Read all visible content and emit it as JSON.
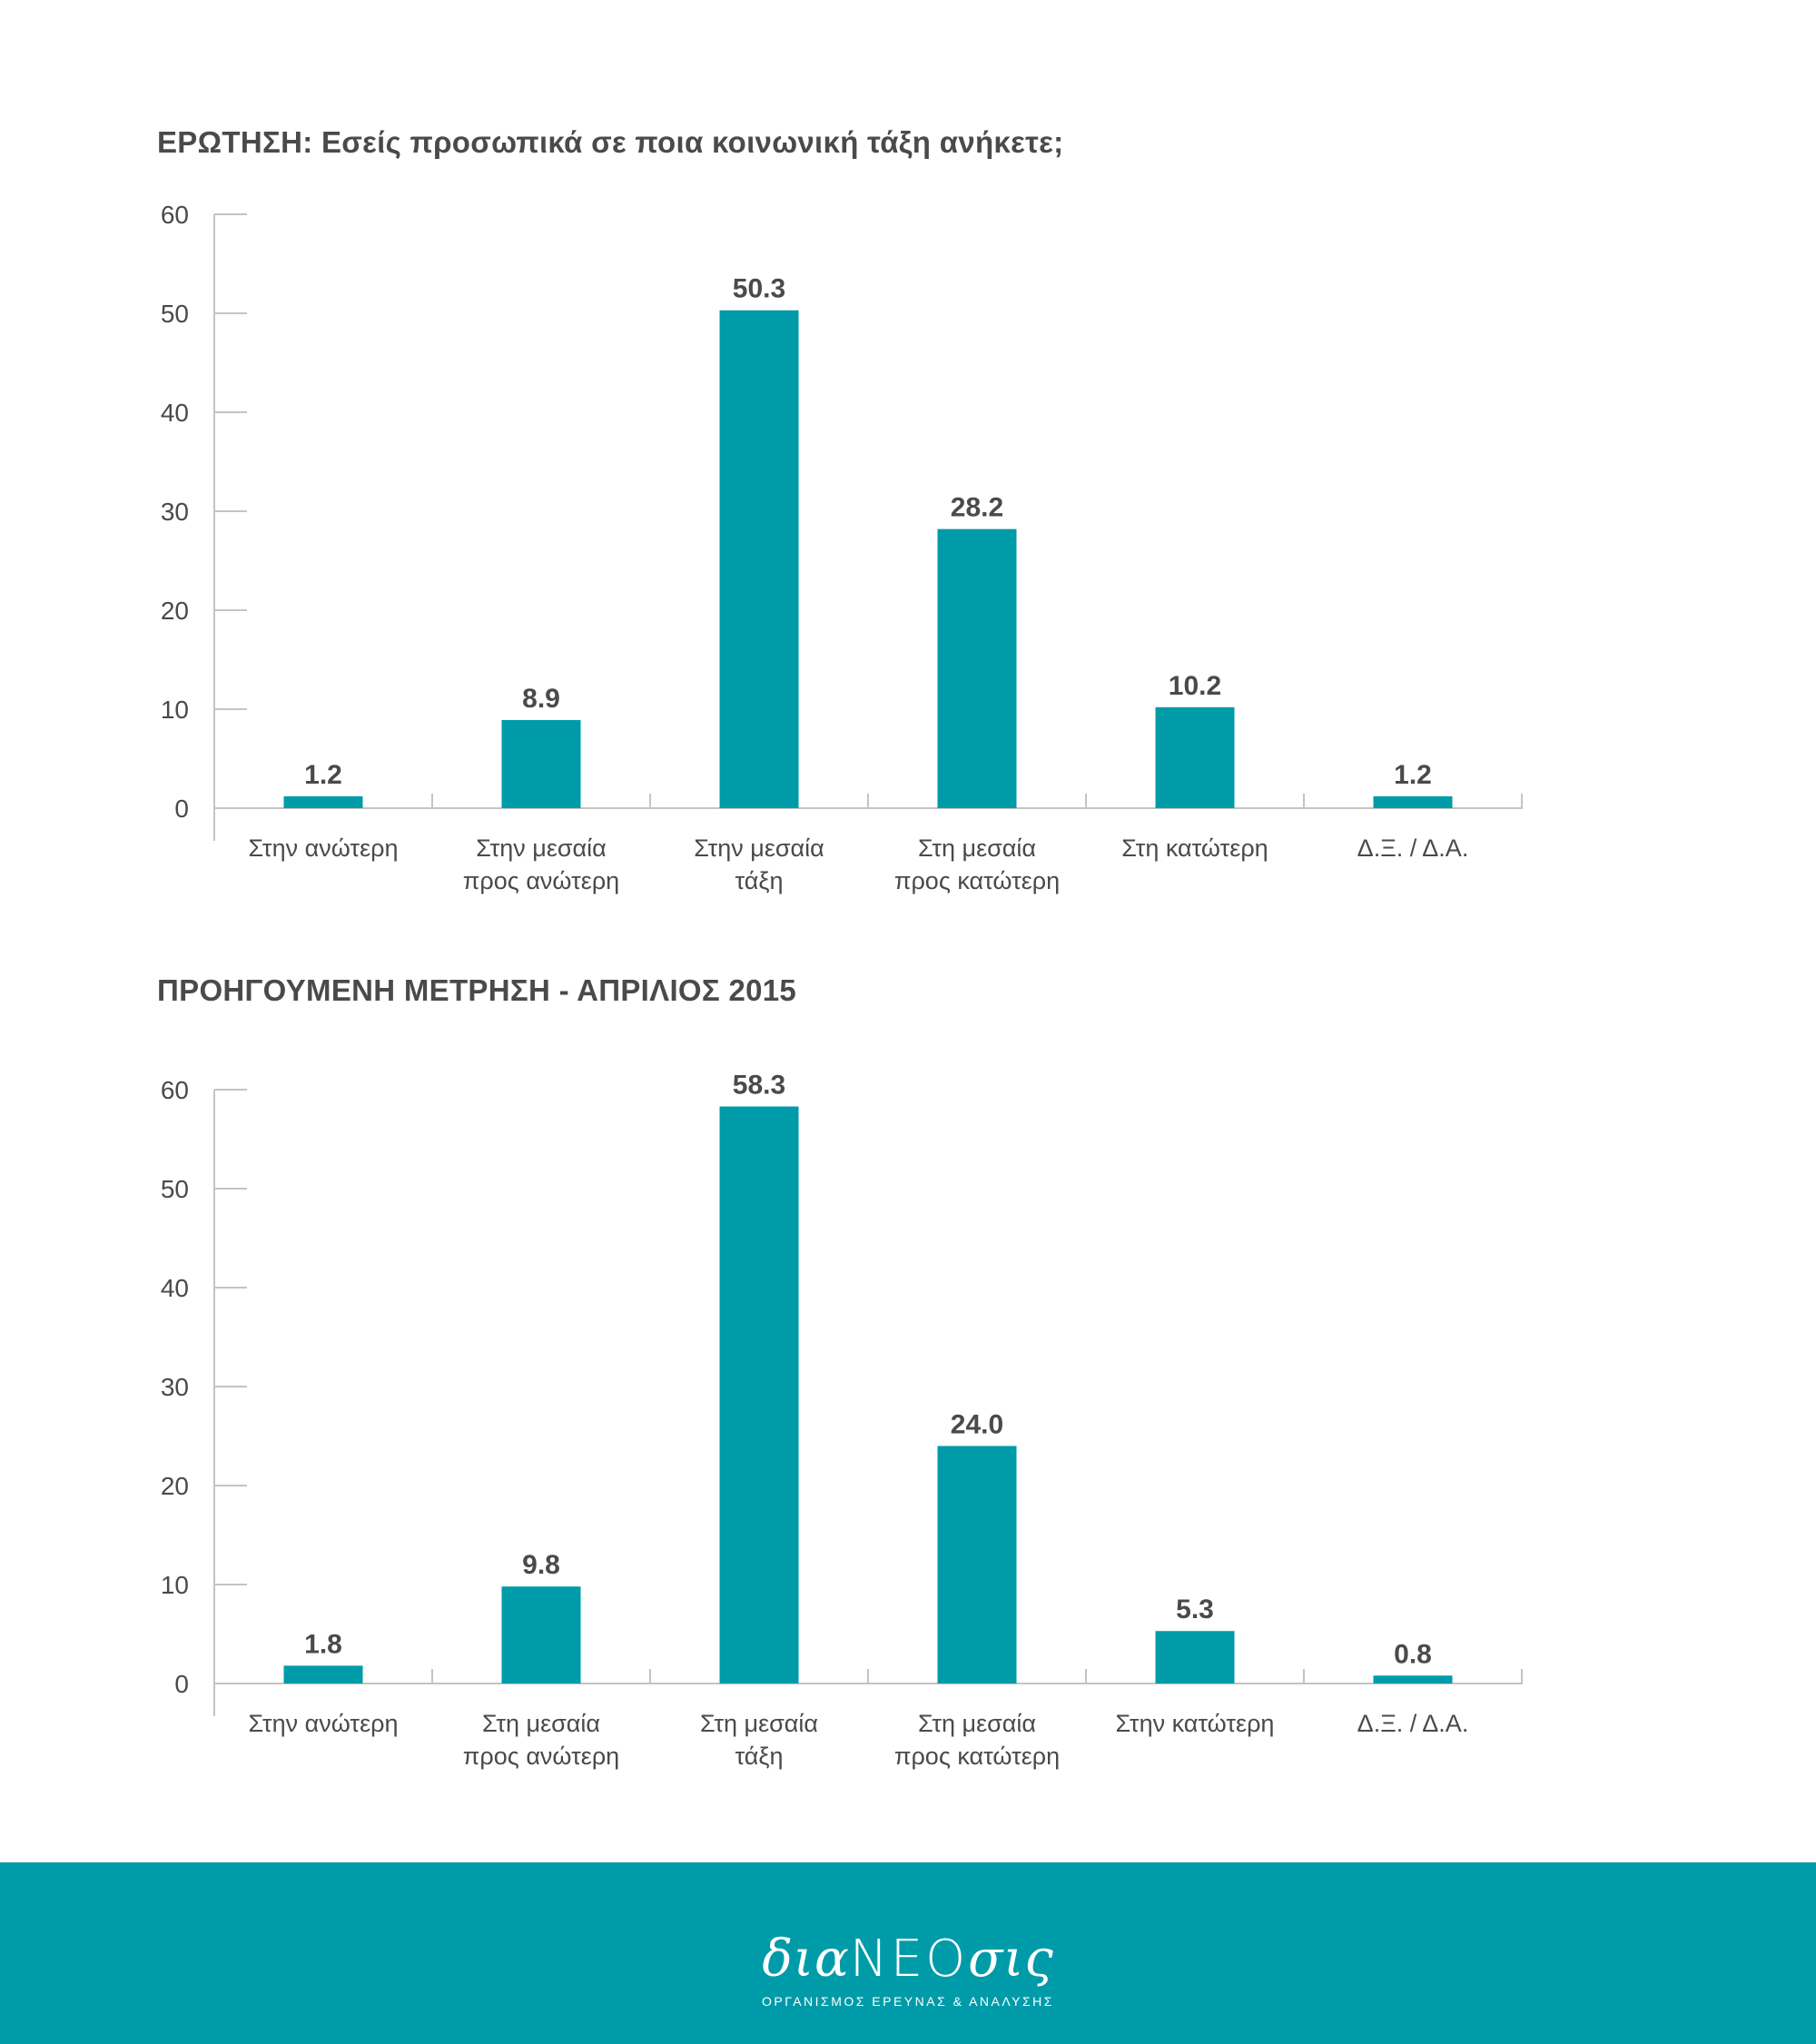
{
  "colors": {
    "bar": "#009ba9",
    "axis": "#c4c4c4",
    "text": "#4a4a4a",
    "footer_bg": "#009ba9"
  },
  "chart_data": [
    {
      "type": "bar",
      "title": "ΕΡΩΤΗΣΗ: Εσείς προσωπικά σε ποια κοινωνική τάξη ανήκετε;",
      "categories": [
        [
          "Στην ανώτερη"
        ],
        [
          "Στην μεσαία",
          "προς ανώτερη"
        ],
        [
          "Στην μεσαία",
          "τάξη"
        ],
        [
          "Στη μεσαία",
          "προς κατώτερη"
        ],
        [
          "Στη κατώτερη"
        ],
        [
          "Δ.Ξ. / Δ.Α."
        ]
      ],
      "values": [
        1.2,
        8.9,
        50.3,
        28.2,
        10.2,
        1.2
      ],
      "value_labels": [
        "1.2",
        "8.9",
        "50.3",
        "28.2",
        "10.2",
        "1.2"
      ],
      "yticks": [
        "0",
        "10",
        "20",
        "30",
        "40",
        "50",
        "60"
      ],
      "ylim": [
        0,
        60
      ],
      "grid": false,
      "legend": "none"
    },
    {
      "type": "bar",
      "title": "ΠΡΟΗΓΟΥΜΕΝΗ ΜΕΤΡΗΣΗ - ΑΠΡΙΛΙΟΣ 2015",
      "categories": [
        [
          "Στην ανώτερη"
        ],
        [
          "Στη μεσαία",
          "προς ανώτερη"
        ],
        [
          "Στη μεσαία",
          "τάξη"
        ],
        [
          "Στη μεσαία",
          "προς κατώτερη"
        ],
        [
          "Στην κατώτερη"
        ],
        [
          "Δ.Ξ. / Δ.Α."
        ]
      ],
      "values": [
        1.8,
        9.8,
        58.3,
        24.0,
        5.3,
        0.8
      ],
      "value_labels": [
        "1.8",
        "9.8",
        "58.3",
        "24.0",
        "5.3",
        "0.8"
      ],
      "yticks": [
        "0",
        "10",
        "20",
        "30",
        "40",
        "50",
        "60"
      ],
      "ylim": [
        0,
        60
      ],
      "grid": false,
      "legend": "none"
    }
  ],
  "footer": {
    "logo_lower_1": "δια",
    "logo_caps": "ΝΕΟ",
    "logo_lower_2": "σις",
    "tagline": "ΟΡΓΑΝΙΣΜΟΣ ΕΡΕΥΝΑΣ & ΑΝΑΛΥΣΗΣ"
  }
}
